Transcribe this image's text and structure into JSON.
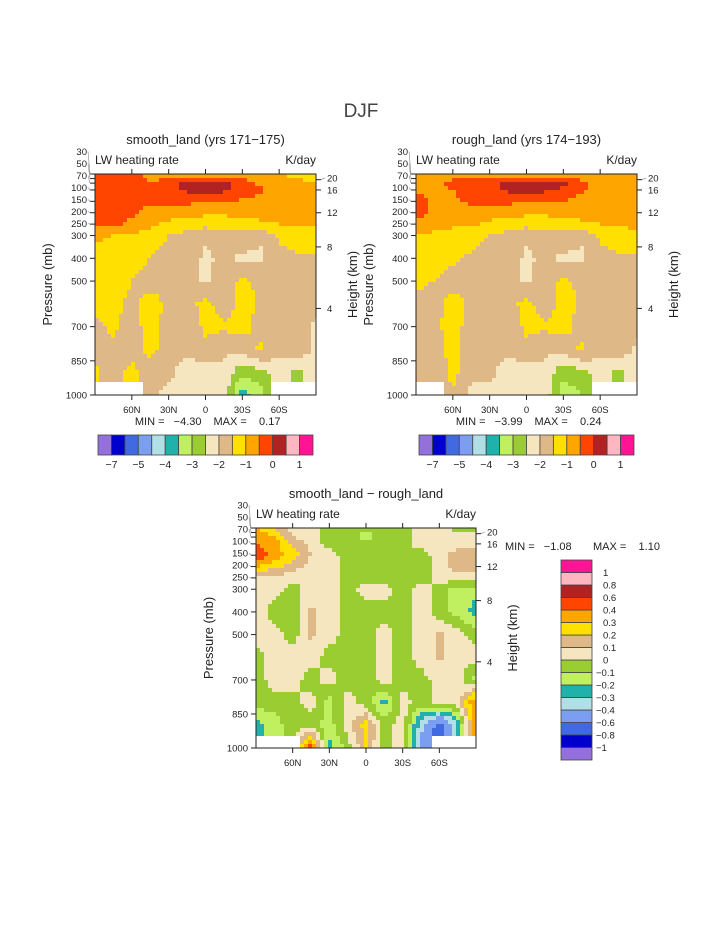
{
  "figure_title": "DJF",
  "chart_data": [
    {
      "type": "heatmap",
      "title": "smooth_land (yrs 171−175)",
      "subtitle_left": "LW heating rate",
      "subtitle_right": "K/day",
      "ylabel": "Pressure (mb)",
      "ylabel_right": "Height (km)",
      "xlim": [
        90,
        -90
      ],
      "ylim": [
        30,
        1000
      ],
      "x_ticks": [
        {
          "label": "60N",
          "v": 60
        },
        {
          "label": "30N",
          "v": 30
        },
        {
          "label": "0",
          "v": 0
        },
        {
          "label": "30S",
          "v": -30
        },
        {
          "label": "60S",
          "v": -60
        }
      ],
      "y_ticks": [
        "30",
        "50",
        "70",
        "100",
        "150",
        "200",
        "250",
        "300",
        "400",
        "500",
        "700",
        "850",
        "1000"
      ],
      "height_ticks": [
        {
          "label": "20",
          "p": 55
        },
        {
          "label": "16",
          "p": 100
        },
        {
          "label": "12",
          "p": 200
        },
        {
          "label": "8",
          "p": 350
        },
        {
          "label": "4",
          "p": 620
        }
      ],
      "min_text": "MIN =   −4.30",
      "max_text": "MAX =    0.17",
      "lat": [
        90,
        75,
        60,
        45,
        30,
        15,
        0,
        -15,
        -30,
        -45,
        -60,
        -75,
        -90
      ],
      "pressure": [
        30,
        70,
        100,
        150,
        200,
        250,
        300,
        400,
        500,
        600,
        700,
        800,
        900,
        1000
      ],
      "values": [
        [
          -0.3,
          -0.3,
          -0.3,
          -0.7,
          -0.8,
          -0.8,
          -0.8,
          -0.8,
          -0.8,
          -0.9,
          -0.9,
          -1.2,
          -1.6
        ],
        [
          -0.3,
          -0.3,
          -0.3,
          -0.5,
          -0.2,
          0.1,
          0.2,
          0.2,
          -0.2,
          -0.7,
          -0.8,
          -0.8,
          -0.9
        ],
        [
          -0.3,
          -0.3,
          -0.3,
          -0.3,
          -0.2,
          0.1,
          0.1,
          0.1,
          -0.2,
          -0.4,
          -0.8,
          -0.8,
          -0.8
        ],
        [
          -0.3,
          -0.3,
          -0.35,
          -0.4,
          -0.4,
          -0.4,
          -0.4,
          -0.4,
          -0.6,
          -0.7,
          -0.8,
          -0.8,
          -0.8
        ],
        [
          -0.3,
          -0.3,
          -0.4,
          -0.7,
          -0.8,
          -0.8,
          -0.9,
          -0.9,
          -0.8,
          -0.8,
          -0.8,
          -0.9,
          -0.9
        ],
        [
          -0.4,
          -0.4,
          -0.6,
          -0.9,
          -1.1,
          -1.2,
          -1.3,
          -1.3,
          -1.2,
          -1.1,
          -1.0,
          -1.0,
          -1.0
        ],
        [
          -0.9,
          -1.0,
          -1.1,
          -1.2,
          -1.5,
          -1.7,
          -1.9,
          -1.6,
          -1.7,
          -1.9,
          -1.4,
          -1.2,
          -1.1
        ],
        [
          -1.2,
          -1.2,
          -1.3,
          -1.5,
          -1.8,
          -1.7,
          -2.1,
          -1.9,
          -2.1,
          -2.1,
          -1.7,
          -1.6,
          -1.6
        ],
        [
          -1.3,
          -1.3,
          -1.5,
          -1.7,
          -1.6,
          -1.7,
          -2.1,
          -1.7,
          -1.4,
          -1.6,
          -1.8,
          -1.7,
          -1.7
        ],
        [
          -1.3,
          -1.4,
          -1.6,
          -1.3,
          -1.6,
          -1.7,
          -1.3,
          -1.8,
          -1.3,
          -1.6,
          -1.8,
          -1.8,
          -1.8
        ],
        [
          -1.6,
          -1.4,
          -1.7,
          -1.3,
          -1.7,
          -1.8,
          -1.4,
          -1.4,
          -1.3,
          -1.7,
          -1.8,
          -1.8,
          -2.1
        ],
        [
          -1.7,
          -1.6,
          -1.8,
          -1.3,
          -1.8,
          -1.9,
          -1.6,
          -1.9,
          -1.8,
          -1.4,
          -1.8,
          -1.7,
          -2.1
        ],
        [
          -1.4,
          -1.8,
          -1.3,
          -1.9,
          -1.9,
          -2.2,
          -2.3,
          -2.1,
          -2.9,
          -2.6,
          -2.3,
          -2.6,
          -2.2
        ],
        [
          null,
          null,
          null,
          -1.9,
          -2.1,
          -2.2,
          -2.2,
          -2.2,
          -3.8,
          -3.2,
          null,
          null,
          null
        ]
      ],
      "levels": [
        -7,
        -6,
        -5,
        -4.5,
        -4,
        -3.5,
        -3,
        -2.5,
        -2,
        -1.5,
        -1,
        -0.5,
        0,
        0.5,
        1
      ],
      "bar_labels": [
        "−7",
        "",
        "−5",
        "",
        "−4",
        "",
        "−3",
        "",
        "−2",
        "",
        "−1",
        "",
        "0",
        "",
        "1"
      ],
      "colorbar": "horizontal"
    },
    {
      "type": "heatmap",
      "title": "rough_land (yrs 174−193)",
      "subtitle_left": "LW heating rate",
      "subtitle_right": "K/day",
      "ylabel": "Pressure (mb)",
      "ylabel_right": "Height (km)",
      "xlim": [
        90,
        -90
      ],
      "ylim": [
        30,
        1000
      ],
      "x_ticks": [
        {
          "label": "60N",
          "v": 60
        },
        {
          "label": "30N",
          "v": 30
        },
        {
          "label": "0",
          "v": 0
        },
        {
          "label": "30S",
          "v": -30
        },
        {
          "label": "60S",
          "v": -60
        }
      ],
      "y_ticks": [
        "30",
        "50",
        "70",
        "100",
        "150",
        "200",
        "250",
        "300",
        "400",
        "500",
        "700",
        "850",
        "1000"
      ],
      "height_ticks": [
        {
          "label": "20",
          "p": 55
        },
        {
          "label": "16",
          "p": 100
        },
        {
          "label": "12",
          "p": 200
        },
        {
          "label": "8",
          "p": 350
        },
        {
          "label": "4",
          "p": 620
        }
      ],
      "min_text": "MIN =   −3.99",
      "max_text": "MAX =    0.24",
      "lat": [
        90,
        75,
        60,
        45,
        30,
        15,
        0,
        -15,
        -30,
        -45,
        -60,
        -75,
        -90
      ],
      "pressure": [
        30,
        70,
        100,
        150,
        200,
        250,
        300,
        400,
        500,
        600,
        700,
        800,
        900,
        1000
      ],
      "values": [
        [
          -0.7,
          -0.7,
          -0.7,
          -0.7,
          -0.8,
          -0.8,
          -0.8,
          -0.8,
          -0.8,
          -0.9,
          -0.9,
          -0.9,
          -0.9
        ],
        [
          -0.7,
          -0.6,
          -0.4,
          -0.3,
          -0.2,
          0.1,
          0.2,
          0.2,
          0.1,
          -0.4,
          -0.8,
          -0.8,
          -0.8
        ],
        [
          -0.6,
          -0.6,
          -0.5,
          -0.3,
          -0.2,
          0.1,
          0.1,
          0.1,
          -0.1,
          -0.4,
          -0.7,
          -0.8,
          -0.8
        ],
        [
          -0.3,
          -0.6,
          -0.6,
          -0.4,
          -0.4,
          -0.4,
          -0.4,
          -0.4,
          -0.5,
          -0.7,
          -0.8,
          -0.8,
          -0.8
        ],
        [
          -0.3,
          -0.6,
          -0.7,
          -0.7,
          -0.8,
          -0.8,
          -0.9,
          -0.9,
          -0.8,
          -0.8,
          -0.8,
          -0.8,
          -0.9
        ],
        [
          -0.6,
          -0.8,
          -0.9,
          -0.9,
          -1.1,
          -1.2,
          -1.3,
          -1.3,
          -1.2,
          -1.1,
          -1.0,
          -1.0,
          -0.8
        ],
        [
          -1.1,
          -1.1,
          -1.2,
          -1.2,
          -1.5,
          -1.7,
          -1.9,
          -1.6,
          -1.7,
          -1.9,
          -1.4,
          -1.2,
          -1.1
        ],
        [
          -1.3,
          -1.3,
          -1.4,
          -1.6,
          -1.8,
          -1.7,
          -2.1,
          -1.9,
          -2.1,
          -2.1,
          -1.7,
          -1.6,
          -1.6
        ],
        [
          -1.4,
          -1.5,
          -1.7,
          -1.7,
          -1.6,
          -1.7,
          -2.1,
          -1.7,
          -1.4,
          -1.6,
          -1.8,
          -1.7,
          -1.7
        ],
        [
          -1.6,
          -1.7,
          -1.3,
          -1.6,
          -1.6,
          -1.7,
          -1.3,
          -1.8,
          -1.3,
          -1.6,
          -1.8,
          -1.8,
          -1.8
        ],
        [
          -1.7,
          -1.6,
          -1.3,
          -1.7,
          -1.7,
          -1.8,
          -1.4,
          -1.4,
          -1.3,
          -1.7,
          -1.8,
          -1.8,
          -1.9
        ],
        [
          -1.8,
          -1.8,
          -1.3,
          -1.8,
          -1.8,
          -1.9,
          -1.6,
          -1.9,
          -1.8,
          -1.4,
          -1.8,
          -1.7,
          -2.1
        ],
        [
          -1.6,
          -1.9,
          -1.3,
          -1.9,
          -1.9,
          -2.2,
          -2.3,
          -2.1,
          -2.9,
          -2.6,
          -2.3,
          -2.6,
          -2.2
        ],
        [
          null,
          null,
          -1.6,
          -2.1,
          -2.1,
          -2.2,
          -2.2,
          -2.2,
          -3.3,
          -3.0,
          null,
          null,
          null
        ]
      ],
      "levels": [
        -7,
        -6,
        -5,
        -4.5,
        -4,
        -3.5,
        -3,
        -2.5,
        -2,
        -1.5,
        -1,
        -0.5,
        0,
        0.5,
        1
      ],
      "bar_labels": [
        "−7",
        "",
        "−5",
        "",
        "−4",
        "",
        "−3",
        "",
        "−2",
        "",
        "−1",
        "",
        "0",
        "",
        "1"
      ],
      "colorbar": "horizontal"
    },
    {
      "type": "heatmap",
      "title": "smooth_land − rough_land",
      "subtitle_left": "LW heating rate",
      "subtitle_right": "K/day",
      "ylabel": "Pressure (mb)",
      "ylabel_right": "Height (km)",
      "xlim": [
        90,
        -90
      ],
      "ylim": [
        30,
        1000
      ],
      "x_ticks": [
        {
          "label": "60N",
          "v": 60
        },
        {
          "label": "30N",
          "v": 30
        },
        {
          "label": "0",
          "v": 0
        },
        {
          "label": "30S",
          "v": -30
        },
        {
          "label": "60S",
          "v": -60
        }
      ],
      "y_ticks": [
        "30",
        "50",
        "70",
        "100",
        "150",
        "200",
        "250",
        "300",
        "400",
        "500",
        "700",
        "850",
        "1000"
      ],
      "height_ticks": [
        {
          "label": "20",
          "p": 55
        },
        {
          "label": "16",
          "p": 100
        },
        {
          "label": "12",
          "p": 200
        },
        {
          "label": "8",
          "p": 350
        },
        {
          "label": "4",
          "p": 620
        }
      ],
      "min_text": "MIN =   −1.08",
      "max_text": "MAX =    1.10",
      "lat": [
        90,
        75,
        60,
        45,
        30,
        15,
        0,
        -15,
        -30,
        -45,
        -60,
        -75,
        -90
      ],
      "pressure": [
        30,
        70,
        100,
        150,
        200,
        250,
        300,
        400,
        500,
        600,
        700,
        800,
        900,
        1000
      ],
      "values": [
        [
          0.3,
          0.2,
          0.05,
          0.05,
          -0.05,
          -0.05,
          -0.05,
          -0.05,
          -0.05,
          0.05,
          0.05,
          -0.05,
          -0.1
        ],
        [
          0.4,
          0.3,
          0.1,
          0.05,
          -0.05,
          -0.05,
          -0.15,
          -0.05,
          -0.05,
          0.05,
          0.05,
          0.05,
          0.05
        ],
        [
          0.4,
          0.35,
          0.2,
          0.05,
          -0.05,
          -0.05,
          -0.05,
          -0.05,
          -0.05,
          0.05,
          0.05,
          0.05,
          0.05
        ],
        [
          0.5,
          0.35,
          0.25,
          0.1,
          0.05,
          -0.05,
          -0.05,
          -0.05,
          -0.05,
          -0.05,
          0.05,
          0.15,
          0.15
        ],
        [
          0.3,
          0.25,
          0.15,
          0.05,
          0.05,
          -0.05,
          -0.05,
          -0.05,
          -0.05,
          -0.05,
          0.05,
          0.15,
          0.15
        ],
        [
          0.05,
          0.05,
          0.05,
          0.05,
          0.05,
          -0.05,
          -0.05,
          -0.05,
          -0.05,
          -0.05,
          0.05,
          0.05,
          0.05
        ],
        [
          0.05,
          0.05,
          -0.05,
          0.05,
          0.05,
          -0.05,
          0.05,
          0.05,
          -0.05,
          0.05,
          -0.05,
          -0.15,
          -0.15
        ],
        [
          0.05,
          -0.05,
          -0.05,
          0.12,
          0.05,
          -0.05,
          -0.05,
          -0.05,
          -0.05,
          0.05,
          -0.05,
          -0.15,
          -0.25
        ],
        [
          0.05,
          0.05,
          -0.05,
          0.12,
          0.05,
          -0.05,
          -0.05,
          0.05,
          -0.05,
          0.05,
          0.12,
          0.05,
          -0.05
        ],
        [
          -0.05,
          0.05,
          0.05,
          0.05,
          -0.05,
          -0.05,
          -0.05,
          0.05,
          -0.05,
          0.05,
          0.12,
          0.05,
          0.05
        ],
        [
          -0.05,
          0.05,
          0.05,
          -0.05,
          0.05,
          -0.05,
          -0.05,
          0.05,
          -0.05,
          -0.05,
          0.05,
          0.05,
          -0.15
        ],
        [
          -0.05,
          -0.05,
          -0.05,
          0.05,
          -0.15,
          0.05,
          -0.05,
          -0.25,
          0.05,
          -0.05,
          0.05,
          0.05,
          0.45
        ],
        [
          -0.25,
          -0.15,
          -0.05,
          -0.05,
          -0.15,
          0.05,
          0.25,
          -0.05,
          0.05,
          -0.35,
          -0.7,
          -0.3,
          0.4
        ],
        [
          null,
          null,
          null,
          0.5,
          -0.25,
          -0.05,
          0.2,
          -0.05,
          0.05,
          -0.5,
          null,
          null,
          null
        ]
      ],
      "levels": [
        -1,
        -0.8,
        -0.6,
        -0.4,
        -0.3,
        -0.2,
        -0.1,
        0,
        0.1,
        0.2,
        0.3,
        0.4,
        0.6,
        0.8,
        1
      ],
      "bar_labels": [
        "−1",
        "−0.8",
        "−0.6",
        "−0.4",
        "−0.3",
        "−0.2",
        "−0.1",
        "0",
        "0.1",
        "0.2",
        "0.3",
        "0.4",
        "0.6",
        "0.8",
        "1"
      ],
      "colorbar": "vertical"
    }
  ],
  "colors": [
    "#9370db",
    "#0000cd",
    "#4169e1",
    "#7b9ef0",
    "#b0e0e6",
    "#20b2aa",
    "#c0f060",
    "#9acd32",
    "#f5e6c0",
    "#deb887",
    "#ffe000",
    "#ffa500",
    "#ff4500",
    "#b22222",
    "#ffb6c1",
    "#ff1493"
  ]
}
